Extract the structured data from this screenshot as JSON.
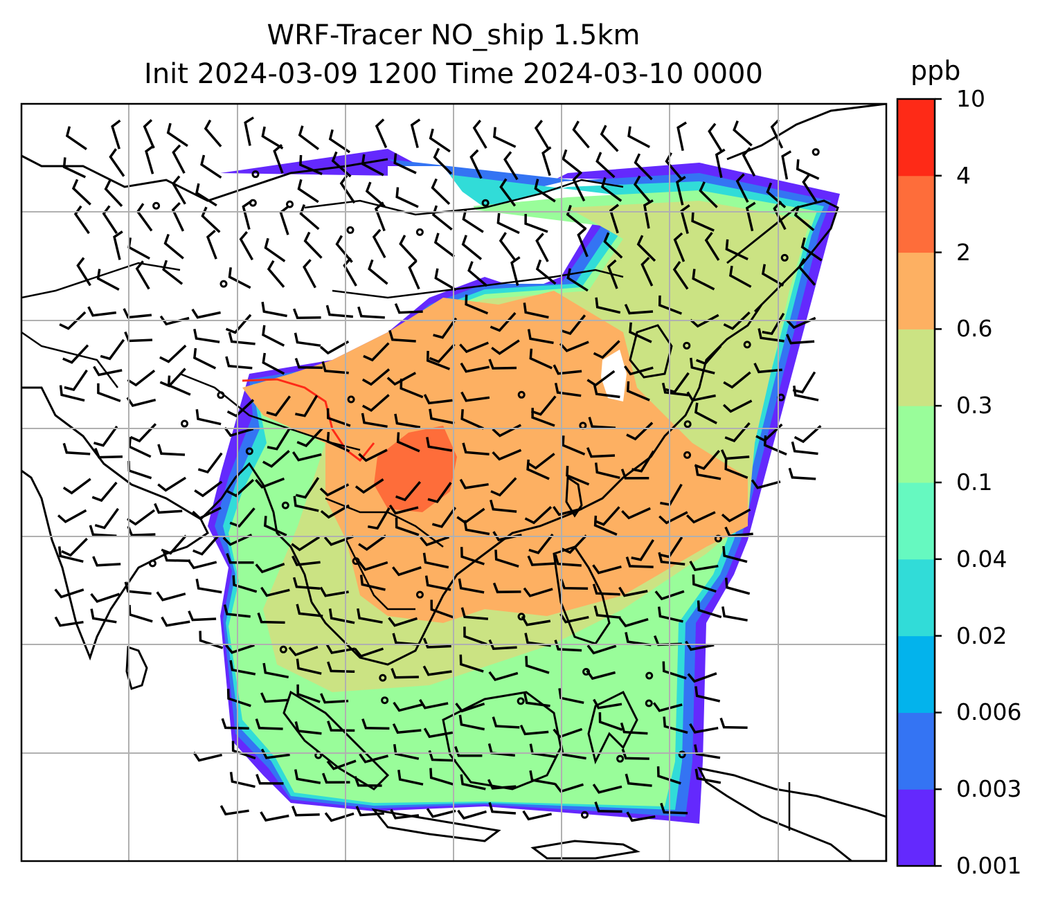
{
  "title": {
    "line1": "WRF-Tracer NO_ship 1.5km",
    "line2": "Init 2024-03-09 1200 Time 2024-03-10 0000"
  },
  "colorbar": {
    "unit": "ppb",
    "levels": [
      "0.001",
      "0.003",
      "0.006",
      "0.02",
      "0.04",
      "0.1",
      "0.3",
      "0.6",
      "2",
      "4",
      "10"
    ],
    "colors": [
      "#6429fd",
      "#3474f3",
      "#03b3ec",
      "#31dcd8",
      "#66f9c0",
      "#99fd9a",
      "#cbe383",
      "#fdb062",
      "#fe6d3a",
      "#fe2a17"
    ]
  },
  "map": {
    "layers": [
      "coastlines",
      "country-borders",
      "gridlines",
      "tracer-concentration-shading",
      "wind-barbs"
    ],
    "grid": true
  }
}
